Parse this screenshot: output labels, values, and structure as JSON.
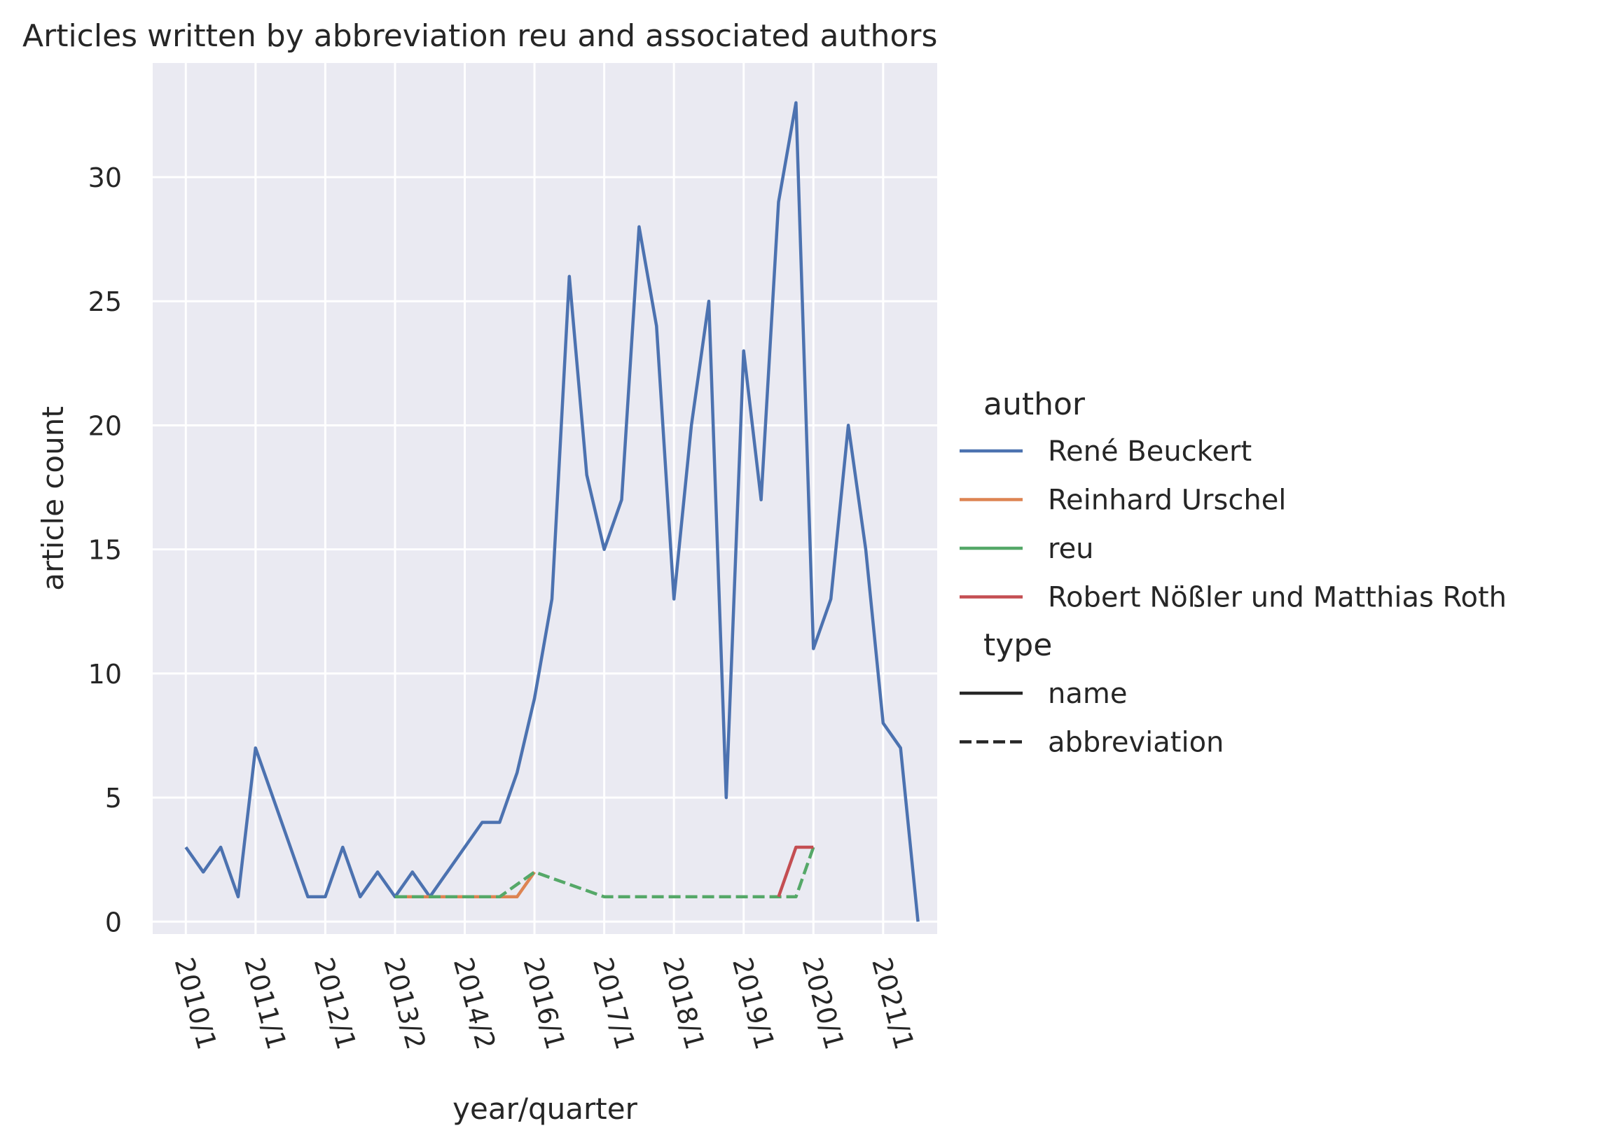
{
  "chart_data": {
    "type": "line",
    "title": "Articles written by abbreviation reu and associated authors",
    "xlabel": "year/quarter",
    "ylabel": "article count",
    "x_ticks": [
      "2010/1",
      "2011/1",
      "2012/1",
      "2013/2",
      "2014/2",
      "2016/1",
      "2017/1",
      "2018/1",
      "2019/1",
      "2020/1",
      "2021/1"
    ],
    "y_ticks": [
      0,
      5,
      10,
      15,
      20,
      25,
      30
    ],
    "ylim": [
      -0.5,
      34.6
    ],
    "xlim": [
      -1.9,
      43.1
    ],
    "grid": true,
    "legend": {
      "placement": "right",
      "author_title": "author",
      "type_title": "type",
      "type_entries": [
        {
          "label": "name",
          "dash": "solid",
          "color": "#262626"
        },
        {
          "label": "abbreviation",
          "dash": "dashed",
          "color": "#262626"
        }
      ]
    },
    "series": [
      {
        "name": "René Beuckert",
        "color": "#4c72b0",
        "dash": "solid",
        "x": [
          0,
          1,
          2,
          3,
          4,
          7,
          8,
          9,
          10,
          11,
          12,
          13,
          14,
          15,
          17,
          18,
          19,
          20,
          21,
          22,
          23,
          24,
          25,
          26,
          27,
          28,
          29,
          30,
          31,
          32,
          33,
          34,
          35,
          36,
          37,
          38,
          39,
          40,
          41,
          42
        ],
        "y": [
          3,
          2,
          3,
          1,
          7,
          1,
          1,
          3,
          1,
          2,
          1,
          2,
          1,
          2,
          4,
          4,
          6,
          9,
          13,
          26,
          18,
          15,
          17,
          28,
          24,
          13,
          20,
          25,
          5,
          23,
          17,
          29,
          33,
          11,
          13,
          20,
          15,
          8,
          7,
          0
        ]
      },
      {
        "name": "Reinhard Urschel",
        "color": "#dd8452",
        "dash": "solid",
        "x": [
          12,
          19,
          20
        ],
        "y": [
          1,
          1,
          2
        ]
      },
      {
        "name": "reu",
        "color": "#55a868",
        "dash": "dashed",
        "x": [
          12,
          18,
          20,
          24,
          35,
          36
        ],
        "y": [
          1,
          1,
          2,
          1,
          1,
          3
        ]
      },
      {
        "name": "Robert Nößler und Matthias Roth",
        "color": "#c44e52",
        "dash": "solid",
        "x": [
          34,
          35,
          36
        ],
        "y": [
          1,
          3,
          3
        ]
      }
    ]
  }
}
